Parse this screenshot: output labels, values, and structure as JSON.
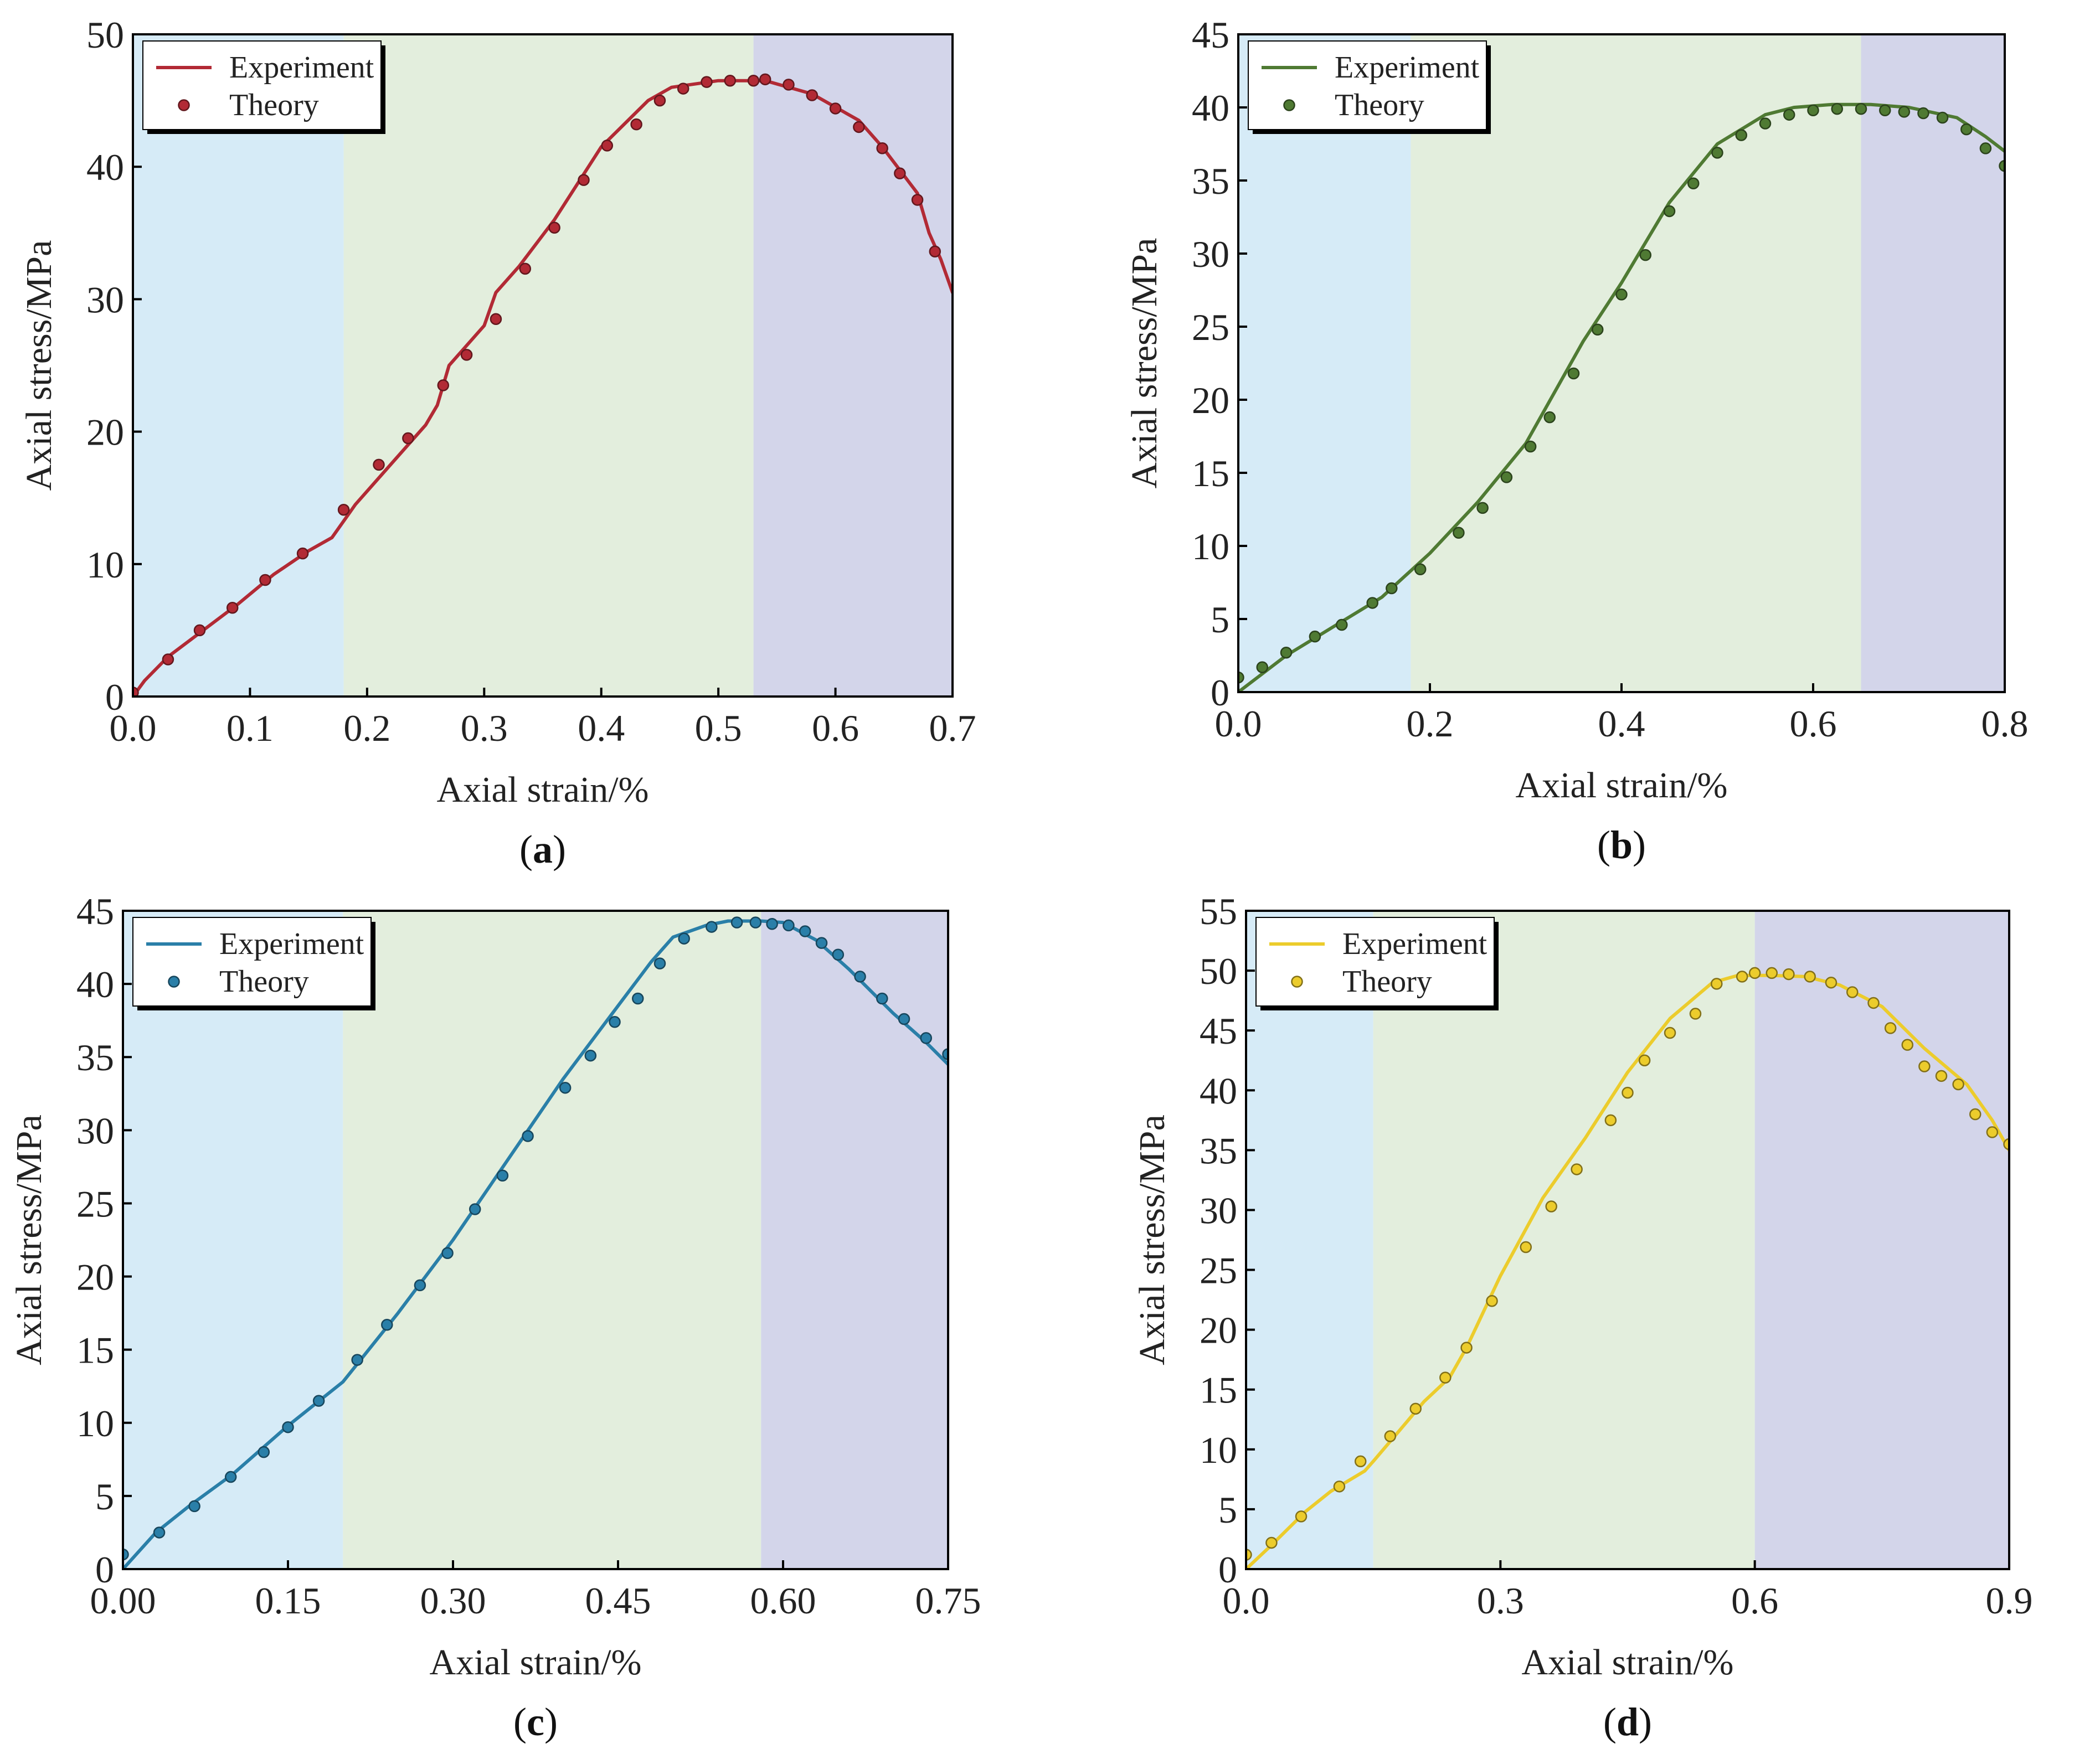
{
  "figure": {
    "colors": {
      "region_elastic": "#d6ebf7",
      "region_plastic": "#e3eedd",
      "region_post_peak": "#d3d5ea",
      "axis": "#000000",
      "tick_text": "#222222"
    },
    "legend": {
      "experiment_label": "Experiment",
      "theory_label": "Theory"
    }
  },
  "chart_data": [
    {
      "type": "line",
      "panel": "a",
      "caption": {
        "open": "(",
        "letter": "a",
        "close": ")"
      },
      "title": "",
      "xlabel": "Axial strain/%",
      "ylabel": "Axial stress/MPa",
      "xlim": [
        0,
        0.7
      ],
      "ylim": [
        0,
        50
      ],
      "xticks": [
        0.0,
        0.1,
        0.2,
        0.3,
        0.4,
        0.5,
        0.6,
        0.7
      ],
      "xtick_labels": [
        "0.0",
        "0.1",
        "0.2",
        "0.3",
        "0.4",
        "0.5",
        "0.6",
        "0.7"
      ],
      "yticks": [
        0,
        10,
        20,
        30,
        40,
        50
      ],
      "ytick_labels": [
        "0",
        "10",
        "20",
        "30",
        "40",
        "50"
      ],
      "regions": [
        [
          0,
          0.18
        ],
        [
          0.18,
          0.53
        ],
        [
          0.53,
          0.7
        ]
      ],
      "color": "#b22a35",
      "legend_position": "top-left",
      "series": [
        {
          "name": "Experiment",
          "kind": "line",
          "x": [
            0,
            0.01,
            0.03,
            0.06,
            0.09,
            0.12,
            0.15,
            0.17,
            0.19,
            0.22,
            0.25,
            0.26,
            0.27,
            0.3,
            0.31,
            0.33,
            0.36,
            0.4,
            0.44,
            0.46,
            0.5,
            0.54,
            0.58,
            0.62,
            0.64,
            0.67,
            0.68,
            0.69,
            0.7
          ],
          "y": [
            0,
            1.2,
            3.0,
            5.0,
            7.0,
            9.2,
            11.0,
            12.0,
            14.5,
            17.5,
            20.5,
            22.0,
            25.0,
            28.0,
            30.5,
            32.5,
            36.0,
            41.5,
            45.0,
            46.0,
            46.5,
            46.5,
            45.5,
            43.5,
            41.5,
            38.0,
            35.0,
            33.0,
            30.5
          ]
        },
        {
          "name": "Theory",
          "kind": "scatter",
          "x": [
            0.0,
            0.03,
            0.057,
            0.085,
            0.113,
            0.145,
            0.18,
            0.21,
            0.235,
            0.265,
            0.285,
            0.31,
            0.335,
            0.36,
            0.385,
            0.405,
            0.43,
            0.45,
            0.47,
            0.49,
            0.51,
            0.53,
            0.54,
            0.56,
            0.58,
            0.6,
            0.62,
            0.64,
            0.655,
            0.67,
            0.685
          ],
          "y": [
            0.3,
            2.8,
            5.0,
            6.7,
            8.8,
            10.8,
            14.1,
            17.5,
            19.5,
            23.5,
            25.8,
            28.5,
            32.3,
            35.4,
            39.0,
            41.6,
            43.2,
            45.0,
            45.9,
            46.4,
            46.5,
            46.5,
            46.6,
            46.2,
            45.4,
            44.4,
            43.0,
            41.4,
            39.5,
            37.5,
            33.6
          ]
        }
      ]
    },
    {
      "type": "line",
      "panel": "b",
      "caption": {
        "open": "(",
        "letter": "b",
        "close": ")"
      },
      "title": "",
      "xlabel": "Axial strain/%",
      "ylabel": "Axial stress/MPa",
      "xlim": [
        0,
        0.8
      ],
      "ylim": [
        0,
        45
      ],
      "xticks": [
        0.0,
        0.2,
        0.4,
        0.6,
        0.8
      ],
      "xtick_labels": [
        "0.0",
        "0.2",
        "0.4",
        "0.6",
        "0.8"
      ],
      "yticks": [
        0,
        5,
        10,
        15,
        20,
        25,
        30,
        35,
        40,
        45
      ],
      "ytick_labels": [
        "0",
        "5",
        "10",
        "15",
        "20",
        "25",
        "30",
        "35",
        "40",
        "45"
      ],
      "regions": [
        [
          0,
          0.18
        ],
        [
          0.18,
          0.65
        ],
        [
          0.65,
          0.8
        ]
      ],
      "color": "#4f7a33",
      "legend_position": "top-left",
      "series": [
        {
          "name": "Experiment",
          "kind": "line",
          "x": [
            0,
            0.05,
            0.1,
            0.15,
            0.2,
            0.25,
            0.3,
            0.33,
            0.36,
            0.4,
            0.45,
            0.5,
            0.55,
            0.58,
            0.62,
            0.66,
            0.7,
            0.75,
            0.78,
            0.8
          ],
          "y": [
            0,
            2.5,
            4.5,
            6.5,
            9.5,
            13.0,
            17.0,
            20.5,
            24.0,
            28.0,
            33.5,
            37.5,
            39.5,
            40.0,
            40.2,
            40.2,
            40.0,
            39.3,
            38.0,
            37.0
          ]
        },
        {
          "name": "Theory",
          "kind": "scatter",
          "x": [
            0.0,
            0.025,
            0.05,
            0.08,
            0.108,
            0.14,
            0.16,
            0.19,
            0.23,
            0.255,
            0.28,
            0.305,
            0.325,
            0.35,
            0.375,
            0.4,
            0.425,
            0.45,
            0.475,
            0.5,
            0.525,
            0.55,
            0.575,
            0.6,
            0.625,
            0.65,
            0.675,
            0.695,
            0.715,
            0.735,
            0.76,
            0.78,
            0.8
          ],
          "y": [
            1.0,
            1.7,
            2.7,
            3.8,
            4.6,
            6.1,
            7.1,
            8.4,
            10.9,
            12.6,
            14.7,
            16.8,
            18.8,
            21.8,
            24.8,
            27.2,
            29.9,
            32.9,
            34.8,
            36.9,
            38.1,
            38.9,
            39.5,
            39.8,
            39.9,
            39.9,
            39.8,
            39.7,
            39.6,
            39.3,
            38.5,
            37.2,
            36.0
          ]
        }
      ]
    },
    {
      "type": "line",
      "panel": "c",
      "caption": {
        "open": "(",
        "letter": "c",
        "close": ")"
      },
      "title": "",
      "xlabel": "Axial strain/%",
      "ylabel": "Axial stress/MPa",
      "xlim": [
        0,
        0.75
      ],
      "ylim": [
        0,
        45
      ],
      "xticks": [
        0.0,
        0.15,
        0.3,
        0.45,
        0.6,
        0.75
      ],
      "xtick_labels": [
        "0.00",
        "0.15",
        "0.30",
        "0.45",
        "0.60",
        "0.75"
      ],
      "yticks": [
        0,
        5,
        10,
        15,
        20,
        25,
        30,
        35,
        40,
        45
      ],
      "ytick_labels": [
        "0",
        "5",
        "10",
        "15",
        "20",
        "25",
        "30",
        "35",
        "40",
        "45"
      ],
      "regions": [
        [
          0,
          0.2
        ],
        [
          0.2,
          0.58
        ],
        [
          0.58,
          0.75
        ]
      ],
      "color": "#2a7fa8",
      "legend_position": "top-left",
      "series": [
        {
          "name": "Experiment",
          "kind": "line",
          "x": [
            0,
            0.03,
            0.06,
            0.1,
            0.15,
            0.2,
            0.25,
            0.3,
            0.35,
            0.4,
            0.45,
            0.48,
            0.5,
            0.53,
            0.55,
            0.58,
            0.6,
            0.63,
            0.66,
            0.7,
            0.73,
            0.75
          ],
          "y": [
            0,
            2.5,
            4.3,
            6.5,
            9.8,
            12.8,
            17.5,
            22.5,
            28.0,
            33.5,
            38.5,
            41.5,
            43.2,
            44.0,
            44.3,
            44.3,
            44.2,
            43.0,
            41.0,
            38.0,
            36.0,
            34.5
          ]
        },
        {
          "name": "Theory",
          "kind": "scatter",
          "x": [
            0.0,
            0.033,
            0.065,
            0.098,
            0.128,
            0.15,
            0.178,
            0.213,
            0.24,
            0.27,
            0.295,
            0.32,
            0.345,
            0.368,
            0.402,
            0.425,
            0.447,
            0.468,
            0.488,
            0.51,
            0.535,
            0.558,
            0.575,
            0.59,
            0.605,
            0.62,
            0.635,
            0.65,
            0.67,
            0.69,
            0.71,
            0.73,
            0.75
          ],
          "y": [
            1.0,
            2.5,
            4.3,
            6.3,
            8.0,
            9.7,
            11.5,
            14.3,
            16.7,
            19.4,
            21.6,
            24.6,
            26.9,
            29.6,
            32.9,
            35.1,
            37.4,
            39.0,
            41.4,
            43.1,
            43.9,
            44.2,
            44.2,
            44.1,
            44.0,
            43.6,
            42.8,
            42.0,
            40.5,
            39.0,
            37.6,
            36.3,
            35.2
          ]
        }
      ]
    },
    {
      "type": "line",
      "panel": "d",
      "caption": {
        "open": "(",
        "letter": "d",
        "close": ")"
      },
      "title": "",
      "xlabel": "Axial strain/%",
      "ylabel": "Axial stress/MPa",
      "xlim": [
        0,
        0.9
      ],
      "ylim": [
        0,
        55
      ],
      "xticks": [
        0.0,
        0.3,
        0.6,
        0.9
      ],
      "xtick_labels": [
        "0.0",
        "0.3",
        "0.6",
        "0.9"
      ],
      "yticks": [
        0,
        5,
        10,
        15,
        20,
        25,
        30,
        35,
        40,
        45,
        50,
        55
      ],
      "ytick_labels": [
        "0",
        "5",
        "10",
        "15",
        "20",
        "25",
        "30",
        "35",
        "40",
        "45",
        "50",
        "55"
      ],
      "regions": [
        [
          0,
          0.15
        ],
        [
          0.15,
          0.6
        ],
        [
          0.6,
          0.9
        ]
      ],
      "color": "#eccc2c",
      "legend_position": "top-left",
      "series": [
        {
          "name": "Experiment",
          "kind": "line",
          "x": [
            0,
            0.03,
            0.07,
            0.1,
            0.14,
            0.15,
            0.18,
            0.21,
            0.24,
            0.26,
            0.3,
            0.35,
            0.4,
            0.45,
            0.5,
            0.55,
            0.58,
            0.62,
            0.66,
            0.7,
            0.75,
            0.8,
            0.85,
            0.88,
            0.9
          ],
          "y": [
            0,
            2.0,
            4.8,
            6.5,
            8.2,
            9.0,
            11.5,
            14.0,
            16.0,
            18.5,
            24.5,
            31.0,
            36.0,
            41.5,
            46.0,
            49.0,
            49.6,
            49.6,
            49.5,
            48.8,
            47.0,
            43.5,
            40.5,
            37.5,
            35.0
          ]
        },
        {
          "name": "Theory",
          "kind": "scatter",
          "x": [
            0.0,
            0.03,
            0.065,
            0.11,
            0.135,
            0.17,
            0.2,
            0.235,
            0.26,
            0.29,
            0.33,
            0.36,
            0.39,
            0.43,
            0.45,
            0.47,
            0.5,
            0.53,
            0.555,
            0.585,
            0.6,
            0.62,
            0.64,
            0.665,
            0.69,
            0.715,
            0.74,
            0.76,
            0.78,
            0.8,
            0.82,
            0.84,
            0.86,
            0.88,
            0.9
          ],
          "y": [
            1.2,
            2.2,
            4.4,
            6.9,
            9.0,
            11.1,
            13.4,
            16.0,
            18.5,
            22.4,
            26.9,
            30.3,
            33.4,
            37.5,
            39.8,
            42.5,
            44.8,
            46.4,
            48.9,
            49.5,
            49.8,
            49.8,
            49.7,
            49.5,
            49.0,
            48.2,
            47.3,
            45.2,
            43.8,
            42.0,
            41.2,
            40.5,
            38.0,
            36.5,
            35.5
          ]
        }
      ]
    }
  ]
}
